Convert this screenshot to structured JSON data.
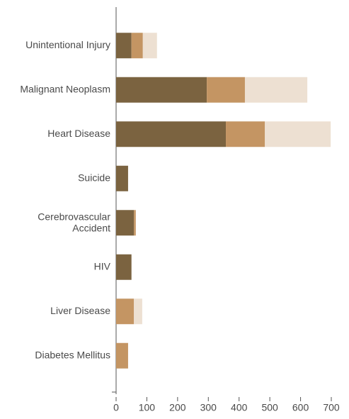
{
  "chart_data": {
    "type": "bar",
    "orientation": "horizontal",
    "stacked": true,
    "categories": [
      "Unintentional Injury",
      "Malignant Neoplasm",
      "Heart Disease",
      "Suicide",
      "Cerebrovascular Accident",
      "HIV",
      "Liver Disease",
      "Diabetes Mellitus"
    ],
    "series": [
      {
        "color": "#7b6340",
        "values": [
          50,
          295,
          357,
          39,
          58,
          50,
          0,
          0
        ]
      },
      {
        "color": "#c49563",
        "values": [
          37,
          124,
          127,
          0,
          6,
          0,
          58,
          39
        ]
      },
      {
        "color": "#ede0d2",
        "values": [
          46,
          203,
          214,
          0,
          0,
          0,
          27,
          0
        ]
      }
    ],
    "xlim": [
      0,
      700
    ],
    "xticks": [
      0,
      100,
      200,
      300,
      400,
      500,
      600,
      700
    ]
  }
}
